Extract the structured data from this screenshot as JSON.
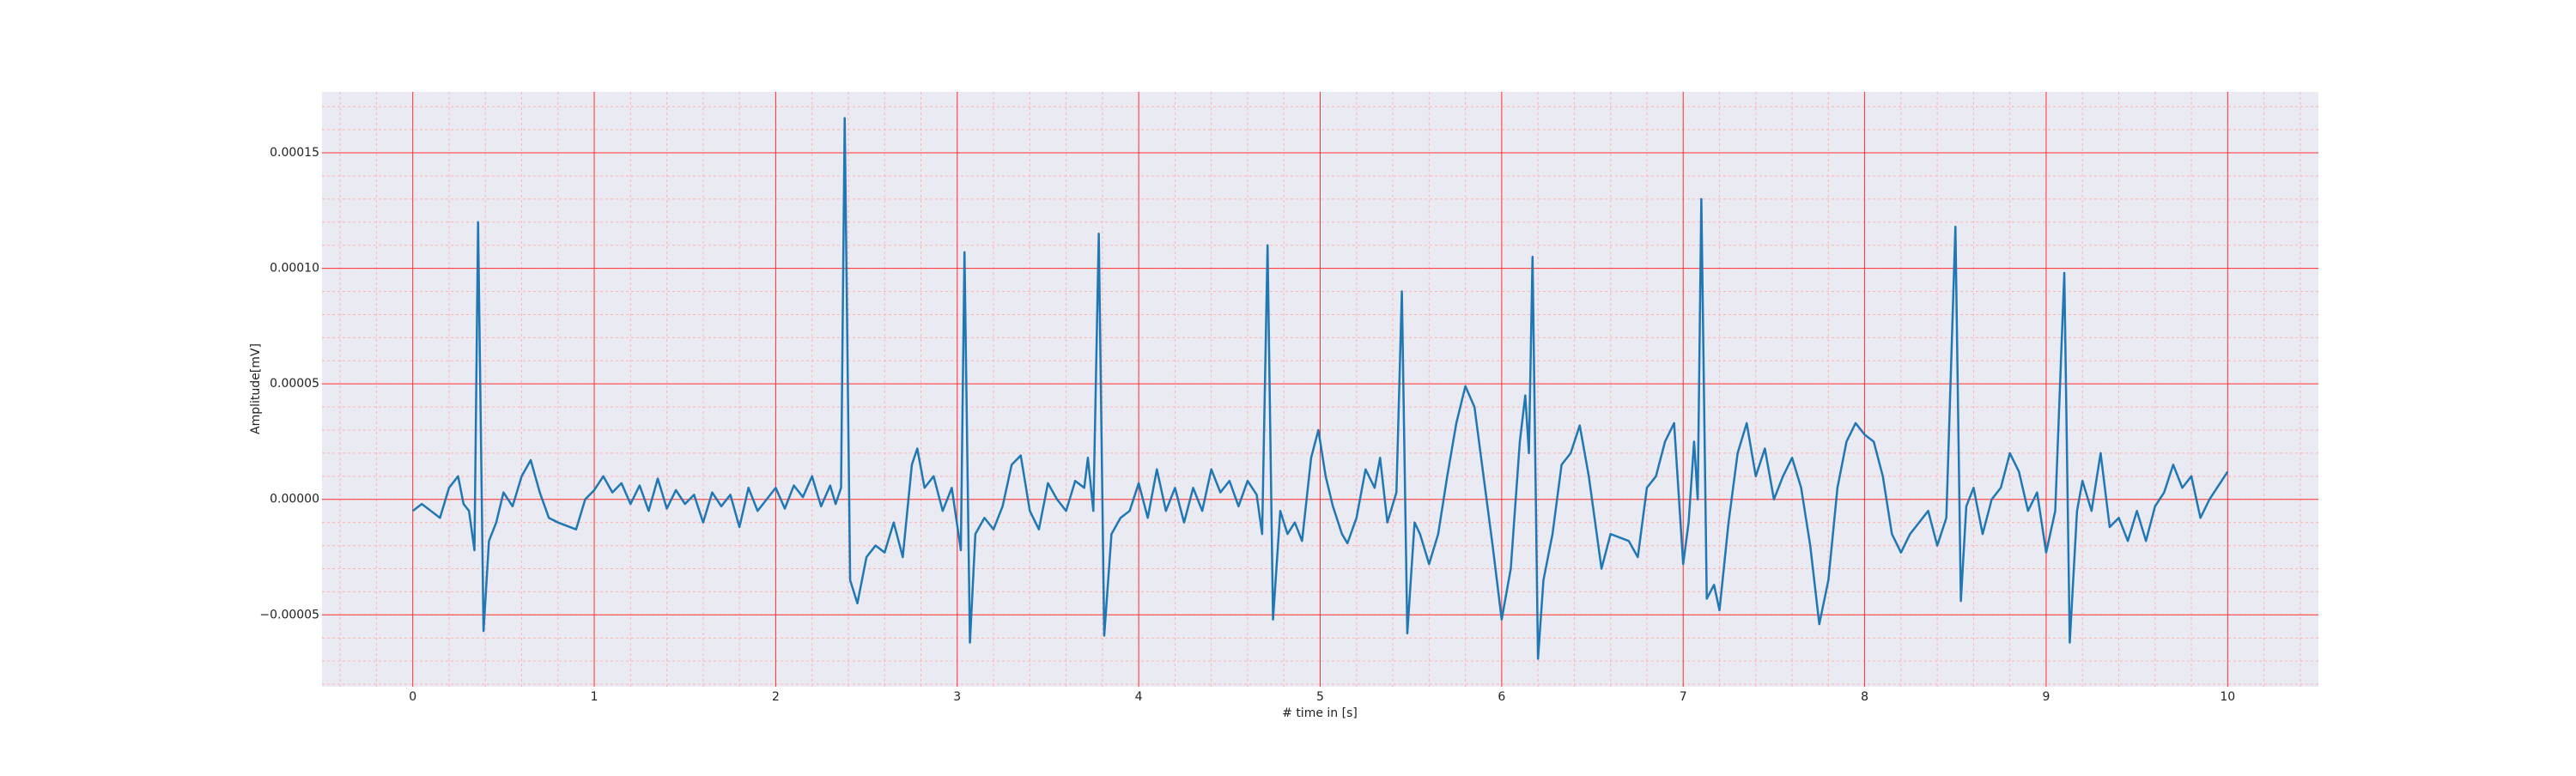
{
  "chart_data": {
    "type": "line",
    "xlabel": "# time in [s]",
    "ylabel": "Amplitude[mV]",
    "x": [
      0,
      0.05,
      0.1,
      0.15,
      0.2,
      0.25,
      0.28,
      0.31,
      0.34,
      0.36,
      0.39,
      0.42,
      0.46,
      0.5,
      0.55,
      0.6,
      0.65,
      0.7,
      0.75,
      0.8,
      0.9,
      0.95,
      1.0,
      1.05,
      1.1,
      1.15,
      1.2,
      1.25,
      1.3,
      1.35,
      1.4,
      1.45,
      1.5,
      1.55,
      1.6,
      1.65,
      1.7,
      1.75,
      1.8,
      1.85,
      1.9,
      2.0,
      2.05,
      2.1,
      2.15,
      2.2,
      2.25,
      2.3,
      2.33,
      2.36,
      2.38,
      2.41,
      2.45,
      2.5,
      2.55,
      2.6,
      2.65,
      2.7,
      2.75,
      2.78,
      2.82,
      2.87,
      2.92,
      2.97,
      3.02,
      3.04,
      3.07,
      3.1,
      3.15,
      3.2,
      3.25,
      3.3,
      3.35,
      3.4,
      3.45,
      3.5,
      3.55,
      3.6,
      3.65,
      3.7,
      3.72,
      3.75,
      3.78,
      3.81,
      3.85,
      3.9,
      3.95,
      4.0,
      4.05,
      4.1,
      4.15,
      4.2,
      4.25,
      4.3,
      4.35,
      4.4,
      4.45,
      4.5,
      4.55,
      4.6,
      4.65,
      4.68,
      4.71,
      4.74,
      4.78,
      4.82,
      4.86,
      4.9,
      4.95,
      4.99,
      5.03,
      5.07,
      5.12,
      5.15,
      5.2,
      5.25,
      5.3,
      5.33,
      5.37,
      5.42,
      5.45,
      5.48,
      5.52,
      5.55,
      5.6,
      5.65,
      5.7,
      5.75,
      5.8,
      5.85,
      5.9,
      5.95,
      6.0,
      6.05,
      6.1,
      6.13,
      6.15,
      6.17,
      6.2,
      6.23,
      6.28,
      6.33,
      6.38,
      6.43,
      6.48,
      6.55,
      6.6,
      6.7,
      6.75,
      6.8,
      6.85,
      6.9,
      6.95,
      7.0,
      7.03,
      7.06,
      7.08,
      7.1,
      7.13,
      7.17,
      7.2,
      7.25,
      7.3,
      7.35,
      7.4,
      7.45,
      7.5,
      7.55,
      7.6,
      7.65,
      7.7,
      7.75,
      7.8,
      7.85,
      7.9,
      7.95,
      8.0,
      8.05,
      8.1,
      8.15,
      8.2,
      8.25,
      8.3,
      8.35,
      8.4,
      8.45,
      8.5,
      8.53,
      8.56,
      8.6,
      8.65,
      8.7,
      8.75,
      8.8,
      8.85,
      8.9,
      8.95,
      9.0,
      9.05,
      9.1,
      9.13,
      9.17,
      9.2,
      9.25,
      9.3,
      9.35,
      9.4,
      9.45,
      9.5,
      9.55,
      9.6,
      9.65,
      9.7,
      9.75,
      9.8,
      9.85,
      9.9,
      10.0
    ],
    "series": [
      {
        "color": "#1f77b4",
        "values": [
          -5e-06,
          -2e-06,
          -5e-06,
          -8e-06,
          5e-06,
          1e-05,
          -2e-06,
          -5e-06,
          -2.2e-05,
          0.00012,
          -5.7e-05,
          -1.8e-05,
          -1e-05,
          3e-06,
          -3e-06,
          1e-05,
          1.7e-05,
          3e-06,
          -8e-06,
          -1e-05,
          -1.3e-05,
          0,
          4e-06,
          1e-05,
          3e-06,
          7e-06,
          -2e-06,
          6e-06,
          -5e-06,
          9e-06,
          -4e-06,
          4e-06,
          -2e-06,
          2e-06,
          -1e-05,
          3e-06,
          -3e-06,
          2e-06,
          -1.2e-05,
          5e-06,
          -5e-06,
          5e-06,
          -4e-06,
          6e-06,
          1e-06,
          1e-05,
          -3e-06,
          6e-06,
          -2e-06,
          5e-06,
          0.000165,
          -3.5e-05,
          -4.5e-05,
          -2.5e-05,
          -2e-05,
          -2.3e-05,
          -1e-05,
          -2.5e-05,
          1.5e-05,
          2.2e-05,
          5e-06,
          1e-05,
          -5e-06,
          5e-06,
          -2.2e-05,
          0.000107,
          -6.2e-05,
          -1.5e-05,
          -8e-06,
          -1.3e-05,
          -3e-06,
          1.5e-05,
          1.9e-05,
          -5e-06,
          -1.3e-05,
          7e-06,
          0,
          -5e-06,
          8e-06,
          5e-06,
          1.8e-05,
          -5e-06,
          0.000115,
          -5.9e-05,
          -1.5e-05,
          -8e-06,
          -5e-06,
          7e-06,
          -8e-06,
          1.3e-05,
          -5e-06,
          5e-06,
          -1e-05,
          5e-06,
          -5e-06,
          1.3e-05,
          3e-06,
          8e-06,
          -3e-06,
          8e-06,
          2e-06,
          -1.5e-05,
          0.00011,
          -5.2e-05,
          -5e-06,
          -1.5e-05,
          -1e-05,
          -1.8e-05,
          1.8e-05,
          3e-05,
          1e-05,
          -3e-06,
          -1.5e-05,
          -1.9e-05,
          -8e-06,
          1.3e-05,
          5e-06,
          1.8e-05,
          -1e-05,
          3e-06,
          9e-05,
          -5.8e-05,
          -1e-05,
          -1.5e-05,
          -2.8e-05,
          -1.5e-05,
          1e-05,
          3.3e-05,
          4.9e-05,
          4e-05,
          1e-05,
          -2e-05,
          -5.2e-05,
          -3e-05,
          2.5e-05,
          4.5e-05,
          2e-05,
          0.000105,
          -6.9e-05,
          -3.5e-05,
          -1.5e-05,
          1.5e-05,
          2e-05,
          3.2e-05,
          1e-05,
          -3e-05,
          -1.5e-05,
          -1.8e-05,
          -2.5e-05,
          5e-06,
          1e-05,
          2.5e-05,
          3.3e-05,
          -2.8e-05,
          -1e-05,
          2.5e-05,
          0,
          0.00013,
          -4.3e-05,
          -3.7e-05,
          -4.8e-05,
          -1e-05,
          2e-05,
          3.3e-05,
          1e-05,
          2.2e-05,
          0,
          1e-05,
          1.8e-05,
          5e-06,
          -2e-05,
          -5.4e-05,
          -3.5e-05,
          5e-06,
          2.5e-05,
          3.3e-05,
          2.8e-05,
          2.5e-05,
          1e-05,
          -1.5e-05,
          -2.3e-05,
          -1.5e-05,
          -1e-05,
          -5e-06,
          -2e-05,
          -8e-06,
          0.000118,
          -4.4e-05,
          -3e-06,
          5e-06,
          -1.5e-05,
          0,
          5e-06,
          2e-05,
          1.2e-05,
          -5e-06,
          3e-06,
          -2.3e-05,
          -5e-06,
          9.8e-05,
          -6.2e-05,
          -5e-06,
          8e-06,
          -5e-06,
          2e-05,
          -1.2e-05,
          -8e-06,
          -1.8e-05,
          -5e-06,
          -1.8e-05,
          -3e-06,
          3e-06,
          1.5e-05,
          5e-06,
          1e-05,
          -8e-06,
          0,
          1.2e-05
        ]
      }
    ],
    "xlim": [
      -0.5,
      10.5
    ],
    "ylim": [
      -8.11e-05,
      0.0001764
    ],
    "xticks": [
      0,
      1,
      2,
      3,
      4,
      5,
      6,
      7,
      8,
      9,
      10
    ],
    "yticks": [
      {
        "value": -5e-05,
        "label": "−0.00005"
      },
      {
        "value": 0,
        "label": "0.00000"
      },
      {
        "value": 5e-05,
        "label": "0.00005"
      },
      {
        "value": 0.0001,
        "label": "0.00010"
      },
      {
        "value": 0.00015,
        "label": "0.00015"
      }
    ],
    "grid": true,
    "grid_color": "#ff3333",
    "background": "#eaeaf2",
    "minor_grid": {
      "x_step": 0.2,
      "y_step": 1e-05,
      "color": "#ffb3b3"
    }
  }
}
